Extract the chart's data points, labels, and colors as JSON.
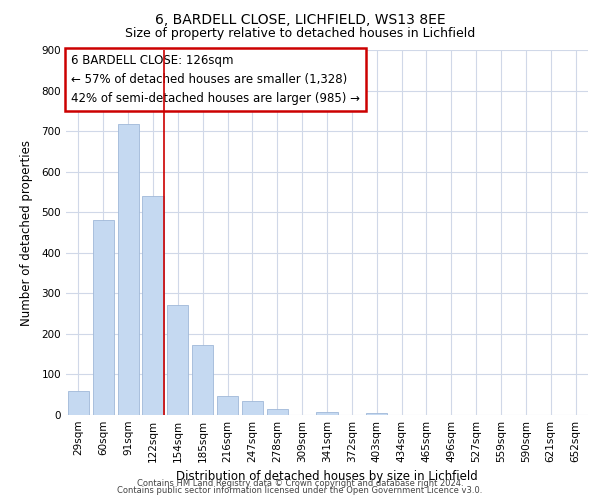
{
  "title": "6, BARDELL CLOSE, LICHFIELD, WS13 8EE",
  "subtitle": "Size of property relative to detached houses in Lichfield",
  "xlabel": "Distribution of detached houses by size in Lichfield",
  "ylabel": "Number of detached properties",
  "footer_line1": "Contains HM Land Registry data © Crown copyright and database right 2024.",
  "footer_line2": "Contains public sector information licensed under the Open Government Licence v3.0.",
  "categories": [
    "29sqm",
    "60sqm",
    "91sqm",
    "122sqm",
    "154sqm",
    "185sqm",
    "216sqm",
    "247sqm",
    "278sqm",
    "309sqm",
    "341sqm",
    "372sqm",
    "403sqm",
    "434sqm",
    "465sqm",
    "496sqm",
    "527sqm",
    "559sqm",
    "590sqm",
    "621sqm",
    "652sqm"
  ],
  "values": [
    60,
    480,
    718,
    540,
    272,
    173,
    48,
    34,
    14,
    0,
    7,
    0,
    6,
    0,
    0,
    0,
    0,
    0,
    0,
    0,
    0
  ],
  "bar_color": "#c5d9f1",
  "bar_edge_color": "#a0b8d8",
  "marker_bar_index": 3,
  "marker_color": "#cc0000",
  "annotation_text_line1": "6 BARDELL CLOSE: 126sqm",
  "annotation_text_line2": "← 57% of detached houses are smaller (1,328)",
  "annotation_text_line3": "42% of semi-detached houses are larger (985) →",
  "annotation_box_color": "#cc0000",
  "ylim": [
    0,
    900
  ],
  "yticks": [
    0,
    100,
    200,
    300,
    400,
    500,
    600,
    700,
    800,
    900
  ],
  "background_color": "#ffffff",
  "grid_color": "#d0d8e8",
  "title_fontsize": 10,
  "subtitle_fontsize": 9,
  "axis_label_fontsize": 8.5,
  "tick_fontsize": 7.5,
  "annotation_fontsize": 8.5,
  "footer_fontsize": 6.0
}
